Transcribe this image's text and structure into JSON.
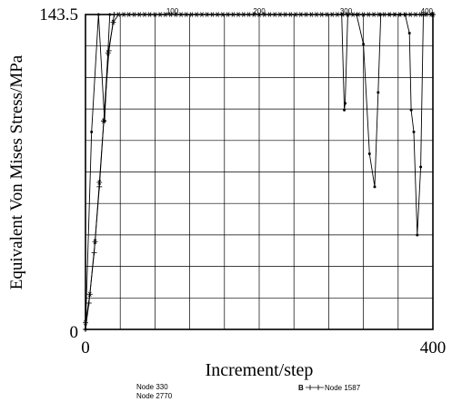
{
  "chart_data": {
    "type": "line",
    "xlabel": "Increment/step",
    "ylabel": "Equivalent Von Mises Stress/MPa",
    "xlim": [
      0,
      400
    ],
    "ylim": [
      0,
      143.5
    ],
    "x_tick_labels": [
      "0",
      "400"
    ],
    "y_tick_labels": [
      "0",
      "143.5"
    ],
    "top_axis_tick_labels": [
      "100",
      "200",
      "300",
      "400"
    ],
    "grid": true,
    "legend": [
      {
        "name": "Node 330"
      },
      {
        "name": "Node 2770"
      },
      {
        "name": "Node 1587",
        "marker_letter": "B"
      }
    ],
    "series": [
      {
        "name": "Node 330",
        "marker": "dot",
        "points": [
          [
            0,
            0
          ],
          [
            7,
            90
          ],
          [
            15,
            143.5
          ],
          [
            22,
            95
          ],
          [
            28,
            143.5
          ],
          [
            295,
            143.5
          ],
          [
            298,
            100
          ],
          [
            299,
            103
          ],
          [
            302,
            143.5
          ],
          [
            312,
            143.5
          ],
          [
            320,
            130
          ],
          [
            327,
            80
          ],
          [
            333,
            65
          ],
          [
            337,
            108
          ],
          [
            340,
            143.5
          ],
          [
            350,
            143.5
          ],
          [
            356,
            143.5
          ],
          [
            362,
            143.5
          ],
          [
            368,
            143.5
          ],
          [
            373,
            135
          ],
          [
            375,
            100
          ],
          [
            378,
            90
          ],
          [
            382,
            43
          ],
          [
            386,
            74
          ],
          [
            389,
            143.5
          ],
          [
            400,
            143.5
          ]
        ]
      },
      {
        "name": "Node 2770",
        "marker": "star",
        "points": [
          [
            0,
            3
          ],
          [
            5,
            16
          ],
          [
            11,
            40
          ],
          [
            16,
            67
          ],
          [
            21,
            95
          ],
          [
            26,
            126
          ],
          [
            32,
            140
          ],
          [
            38,
            143.5
          ],
          [
            400,
            143.5
          ]
        ]
      },
      {
        "name": "Node 1587",
        "marker": "plus",
        "points": [
          [
            0,
            0
          ],
          [
            4,
            12
          ],
          [
            10,
            35
          ],
          [
            16,
            65
          ],
          [
            21,
            95
          ],
          [
            27,
            127
          ],
          [
            33,
            143.5
          ],
          [
            400,
            143.5
          ]
        ]
      }
    ]
  }
}
